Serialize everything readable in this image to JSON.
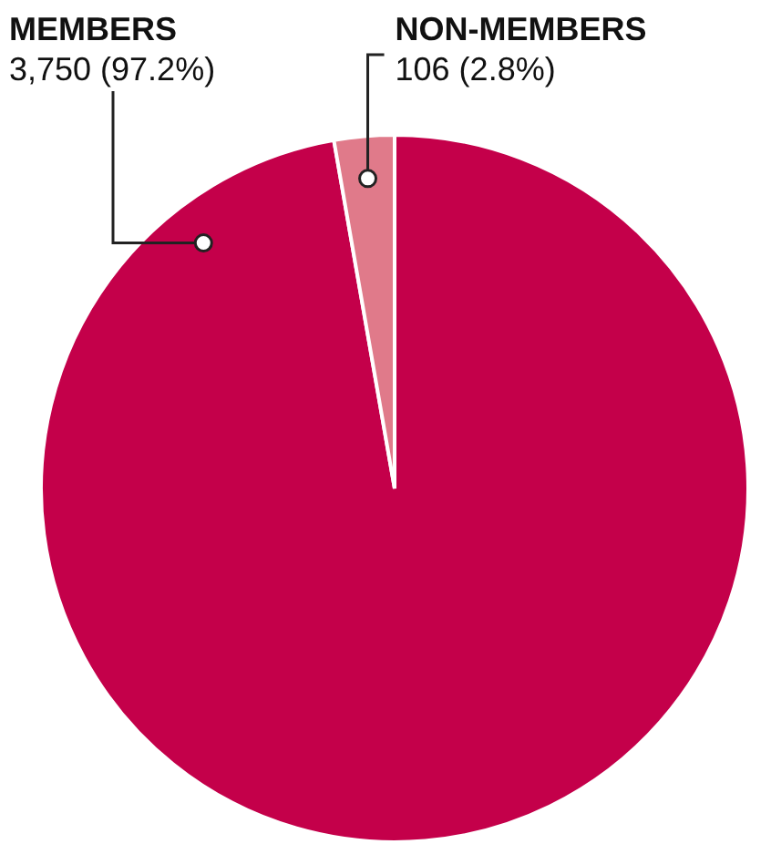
{
  "chart_data": {
    "type": "pie",
    "categories": [
      "MEMBERS",
      "NON-MEMBERS"
    ],
    "values": [
      3750,
      106
    ],
    "colors": [
      "#c4004a",
      "#e07a8a"
    ],
    "value_labels": [
      "3,750 (97.2%)",
      "106 (2.8%)"
    ],
    "legend": false
  }
}
